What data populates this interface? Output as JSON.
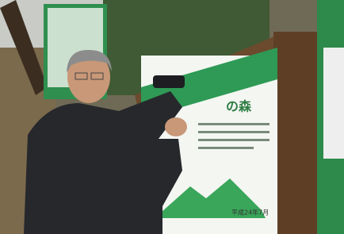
{
  "sign": {
    "title": "の森",
    "date": "平成24年7月"
  }
}
